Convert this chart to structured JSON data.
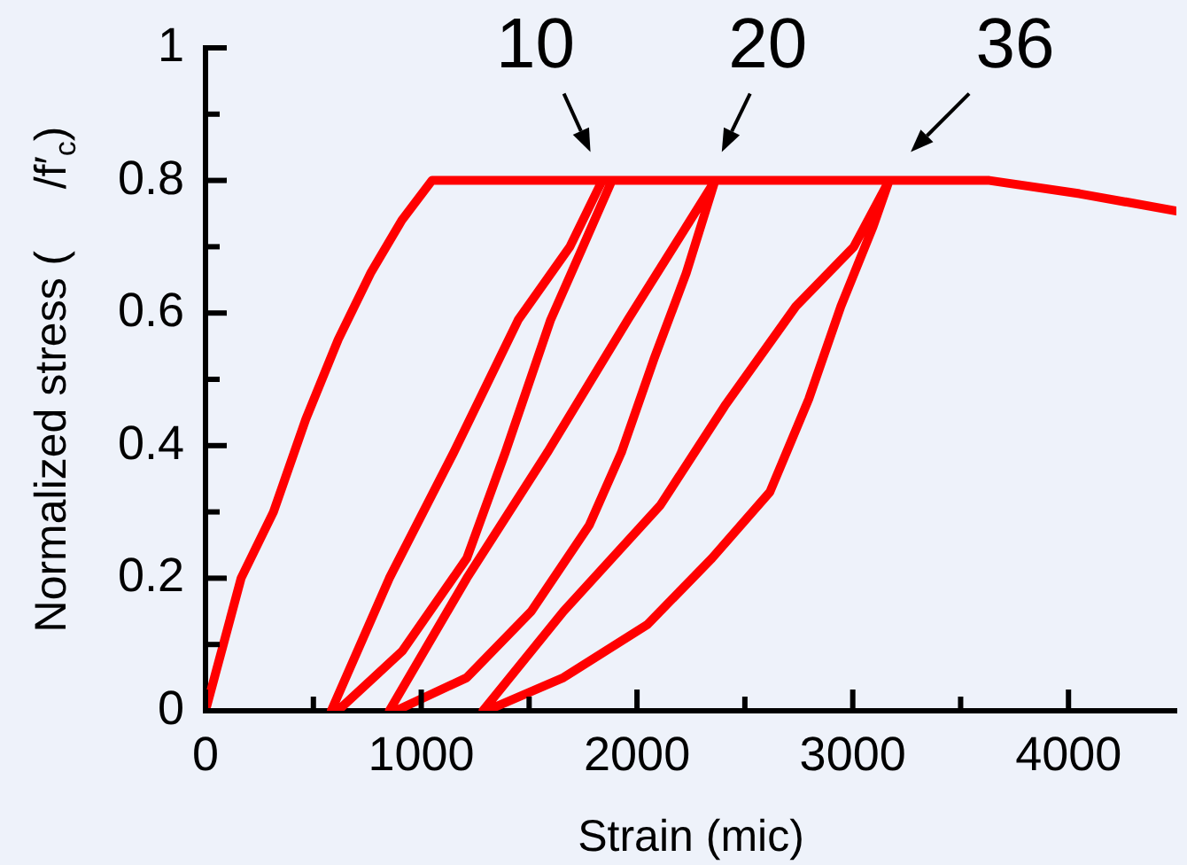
{
  "chart_data": {
    "type": "line",
    "xlabel": "Strain (mic)",
    "ylabel": "Normalized stress (     /f′$_{c}$)",
    "xlim": [
      0,
      4500
    ],
    "xticks": [
      0,
      {
        "value": 500,
        "label": null
      },
      1000,
      {
        "value": 1500,
        "label": null
      },
      2000,
      {
        "value": 2500,
        "label": null
      },
      3000,
      {
        "value": 3500,
        "label": null
      },
      4000
    ],
    "ylim": [
      0,
      1
    ],
    "yticks": [
      0,
      {
        "value": 0.1,
        "label": null
      },
      0.2,
      {
        "value": 0.3,
        "label": null
      },
      0.4,
      {
        "value": 0.5,
        "label": null
      },
      0.6,
      {
        "value": 0.7,
        "label": null
      },
      0.8,
      {
        "value": 0.9,
        "label": null
      },
      1
    ],
    "grid": false,
    "legend": false,
    "marker": "none",
    "line_style": "solid",
    "annotations": [
      {
        "text": "10",
        "x": 1850,
        "y": 0.8
      },
      {
        "text": "20",
        "x": 2360,
        "y": 0.8
      },
      {
        "text": "36",
        "x": 3170,
        "y": 0.8
      }
    ],
    "series": [
      {
        "color": "#ff0000",
        "x": [
          0,
          165,
          315,
          465,
          615,
          765,
          910,
          1050,
          1884,
          1839,
          1689,
          1450,
          1151,
          852,
          583,
          613,
          912,
          1211,
          1390,
          1600,
          1749,
          1884,
          2362,
          2228,
          1958,
          1585,
          1211,
          852,
          882,
          1211,
          1510,
          1779,
          1928,
          2078,
          2228,
          2362,
          3169,
          3005,
          2736,
          2407,
          2108,
          1659,
          1286,
          1301,
          1659,
          2048,
          2347,
          2616,
          2796,
          2945,
          3094,
          3169,
          3633,
          4051,
          4500
        ],
        "values": [
          0,
          0.2,
          0.3,
          0.44,
          0.56,
          0.66,
          0.74,
          0.8,
          0.8,
          0.8,
          0.7,
          0.59,
          0.39,
          0.2,
          0,
          0,
          0.09,
          0.23,
          0.39,
          0.59,
          0.7,
          0.8,
          0.8,
          0.73,
          0.59,
          0.39,
          0.2,
          0,
          0,
          0.05,
          0.15,
          0.28,
          0.39,
          0.53,
          0.66,
          0.8,
          0.8,
          0.7,
          0.61,
          0.46,
          0.31,
          0.15,
          0,
          0,
          0.05,
          0.13,
          0.23,
          0.33,
          0.47,
          0.61,
          0.73,
          0.8,
          0.8,
          0.78,
          0.754
        ]
      }
    ]
  }
}
